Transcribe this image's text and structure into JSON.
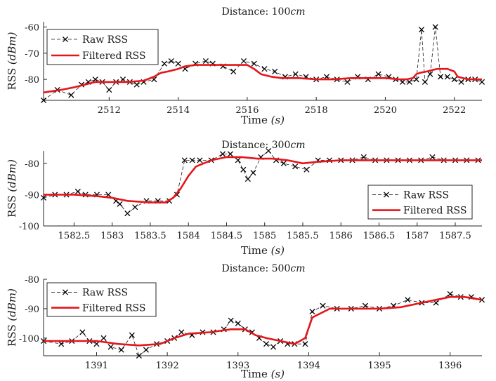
{
  "chart_data": [
    {
      "type": "line",
      "title_prefix": "Distance:",
      "title_value": "100",
      "title_unit": "cm",
      "xlabel": "Time",
      "xunit": "(s)",
      "ylabel": "RSS",
      "yunit": "(dBm)",
      "xlim": [
        2510.1,
        2522.8
      ],
      "ylim": [
        -88,
        -58
      ],
      "xticks": [
        2512,
        2514,
        2516,
        2518,
        2520,
        2522
      ],
      "yticks": [
        -80,
        -70,
        -60
      ],
      "grid": false,
      "legend": {
        "position": "top-left",
        "entries": [
          "Raw RSS",
          "Filtered RSS"
        ]
      },
      "series": [
        {
          "name": "Raw RSS",
          "style": "dashed-x",
          "color": "#000000",
          "x": [
            2510.1,
            2510.5,
            2510.9,
            2511.2,
            2511.4,
            2511.6,
            2511.8,
            2512.0,
            2512.2,
            2512.4,
            2512.6,
            2512.8,
            2513.0,
            2513.3,
            2513.6,
            2513.8,
            2514.0,
            2514.2,
            2514.5,
            2514.8,
            2515.0,
            2515.3,
            2515.6,
            2515.9,
            2516.2,
            2516.5,
            2516.8,
            2517.1,
            2517.4,
            2517.7,
            2518.0,
            2518.3,
            2518.6,
            2518.9,
            2519.2,
            2519.5,
            2519.8,
            2520.1,
            2520.3,
            2520.5,
            2520.7,
            2520.9,
            2521.05,
            2521.15,
            2521.3,
            2521.45,
            2521.6,
            2521.8,
            2522.0,
            2522.2,
            2522.4,
            2522.6,
            2522.8
          ],
          "values": [
            -88,
            -84,
            -86,
            -82,
            -81,
            -80,
            -81,
            -84,
            -81,
            -80,
            -81,
            -82,
            -81,
            -80,
            -74,
            -73,
            -74,
            -76,
            -74,
            -73,
            -74,
            -75,
            -77,
            -73,
            -74,
            -76,
            -77,
            -79,
            -78,
            -79,
            -80,
            -79,
            -80,
            -81,
            -79,
            -80,
            -78,
            -79,
            -80,
            -81,
            -81,
            -80,
            -61,
            -81,
            -78,
            -60,
            -79,
            -79,
            -80,
            -81,
            -80,
            -80,
            -81
          ]
        },
        {
          "name": "Filtered RSS",
          "style": "solid",
          "color": "#e4161b",
          "x": [
            2510.1,
            2510.6,
            2511.0,
            2511.3,
            2511.6,
            2512.0,
            2512.5,
            2513.0,
            2513.3,
            2513.5,
            2513.7,
            2514.0,
            2514.2,
            2514.5,
            2515.0,
            2515.5,
            2516.0,
            2516.2,
            2516.4,
            2516.7,
            2517.0,
            2517.5,
            2518.0,
            2518.5,
            2519.0,
            2519.5,
            2520.0,
            2520.4,
            2520.6,
            2520.8,
            2520.9,
            2521.0,
            2521.2,
            2521.5,
            2521.8,
            2522.0,
            2522.1,
            2522.4,
            2522.8
          ],
          "values": [
            -85,
            -84,
            -83,
            -82,
            -81,
            -81,
            -81,
            -80.5,
            -79,
            -77.5,
            -77,
            -76,
            -75,
            -74.5,
            -74.5,
            -74.5,
            -74.5,
            -76,
            -78,
            -79,
            -79.5,
            -79.5,
            -80,
            -80,
            -79.5,
            -79.5,
            -79.5,
            -80,
            -80,
            -79.5,
            -78,
            -77.5,
            -77,
            -76,
            -76,
            -77,
            -79,
            -80,
            -80
          ]
        }
      ]
    },
    {
      "type": "line",
      "title_prefix": "Distance:",
      "title_value": "300",
      "title_unit": "cm",
      "xlabel": "Time",
      "xunit": "(s)",
      "ylabel": "RSS",
      "yunit": "(dBm)",
      "xlim": [
        1582.1,
        1587.85
      ],
      "ylim": [
        -100,
        -76
      ],
      "xticks": [
        1582.5,
        1583,
        1583.5,
        1584,
        1584.5,
        1585,
        1585.5,
        1586,
        1586.5,
        1587,
        1587.5
      ],
      "yticks": [
        -100,
        -90,
        -80
      ],
      "grid": false,
      "legend": {
        "position": "bottom-right",
        "entries": [
          "Raw RSS",
          "Filtered RSS"
        ]
      },
      "series": [
        {
          "name": "Raw RSS",
          "style": "dashed-x",
          "color": "#000000",
          "x": [
            1582.1,
            1582.25,
            1582.4,
            1582.55,
            1582.65,
            1582.8,
            1582.95,
            1583.05,
            1583.1,
            1583.2,
            1583.3,
            1583.45,
            1583.6,
            1583.75,
            1583.85,
            1583.95,
            1584.05,
            1584.15,
            1584.3,
            1584.45,
            1584.55,
            1584.65,
            1584.72,
            1584.78,
            1584.85,
            1584.95,
            1585.05,
            1585.15,
            1585.25,
            1585.4,
            1585.55,
            1585.7,
            1585.85,
            1586.0,
            1586.15,
            1586.3,
            1586.45,
            1586.6,
            1586.75,
            1586.9,
            1587.05,
            1587.2,
            1587.35,
            1587.5,
            1587.65,
            1587.8
          ],
          "values": [
            -91,
            -90,
            -90,
            -89,
            -90,
            -90,
            -90,
            -92,
            -93,
            -96,
            -94,
            -92,
            -92,
            -92,
            -90,
            -79,
            -79,
            -79,
            -79,
            -77,
            -77,
            -79,
            -82,
            -85,
            -83,
            -78,
            -76,
            -79,
            -80,
            -81,
            -82,
            -79,
            -79,
            -79,
            -79,
            -78,
            -79,
            -79,
            -79,
            -79,
            -79,
            -78,
            -79,
            -79,
            -79,
            -79
          ]
        },
        {
          "name": "Filtered RSS",
          "style": "solid",
          "color": "#e4161b",
          "x": [
            1582.1,
            1582.5,
            1582.8,
            1583.0,
            1583.2,
            1583.5,
            1583.7,
            1583.8,
            1583.9,
            1583.95,
            1584.0,
            1584.1,
            1584.3,
            1584.5,
            1584.7,
            1584.9,
            1585.1,
            1585.3,
            1585.5,
            1585.7,
            1586.0,
            1586.5,
            1587.0,
            1587.5,
            1587.85
          ],
          "values": [
            -90,
            -90,
            -90.5,
            -91,
            -92,
            -92.5,
            -92.5,
            -91,
            -88,
            -86,
            -84,
            -81,
            -79,
            -78,
            -78,
            -78.5,
            -78.5,
            -79,
            -80,
            -79.5,
            -79,
            -79,
            -79,
            -79,
            -79
          ]
        }
      ]
    },
    {
      "type": "line",
      "title_prefix": "Distance:",
      "title_value": "500",
      "title_unit": "cm",
      "xlabel": "Time",
      "xunit": "(s)",
      "ylabel": "RSS",
      "yunit": "(dBm)",
      "xlim": [
        1390.25,
        1396.45
      ],
      "ylim": [
        -106,
        -80
      ],
      "xticks": [
        1391,
        1392,
        1393,
        1394,
        1395,
        1396
      ],
      "yticks": [
        -100,
        -90,
        -80
      ],
      "grid": false,
      "legend": {
        "position": "top-left",
        "entries": [
          "Raw RSS",
          "Filtered RSS"
        ]
      },
      "series": [
        {
          "name": "Raw RSS",
          "style": "dashed-x",
          "color": "#000000",
          "x": [
            1390.25,
            1390.5,
            1390.65,
            1390.8,
            1390.9,
            1391.0,
            1391.1,
            1391.2,
            1391.35,
            1391.5,
            1391.6,
            1391.7,
            1391.85,
            1392.0,
            1392.1,
            1392.2,
            1392.35,
            1392.5,
            1392.65,
            1392.8,
            1392.9,
            1393.0,
            1393.1,
            1393.2,
            1393.3,
            1393.4,
            1393.5,
            1393.6,
            1393.7,
            1393.8,
            1393.95,
            1394.05,
            1394.2,
            1394.4,
            1394.6,
            1394.8,
            1395.0,
            1395.2,
            1395.4,
            1395.6,
            1395.8,
            1396.0,
            1396.15,
            1396.3,
            1396.45
          ],
          "values": [
            -101,
            -102,
            -101,
            -98,
            -101,
            -102,
            -100,
            -103,
            -104,
            -99,
            -106,
            -104,
            -102,
            -101,
            -100,
            -98,
            -99,
            -98,
            -98,
            -97,
            -94,
            -95,
            -97,
            -98,
            -100,
            -102,
            -103,
            -101,
            -102,
            -102,
            -102,
            -91,
            -89,
            -90,
            -90,
            -89,
            -90,
            -89,
            -87,
            -88,
            -88,
            -85,
            -86,
            -86,
            -87
          ]
        },
        {
          "name": "Filtered RSS",
          "style": "solid",
          "color": "#e4161b",
          "x": [
            1390.25,
            1390.6,
            1391.0,
            1391.3,
            1391.6,
            1391.9,
            1392.1,
            1392.3,
            1392.6,
            1392.9,
            1393.1,
            1393.25,
            1393.4,
            1393.6,
            1393.8,
            1393.95,
            1394.05,
            1394.3,
            1394.6,
            1395.0,
            1395.3,
            1395.6,
            1395.8,
            1396.0,
            1396.2,
            1396.45
          ],
          "values": [
            -101,
            -101,
            -101,
            -102,
            -102.5,
            -102,
            -100,
            -98.5,
            -98,
            -97,
            -97,
            -99,
            -100,
            -101,
            -102,
            -100,
            -93,
            -90,
            -90,
            -90,
            -89.5,
            -88,
            -87,
            -86,
            -86,
            -87
          ]
        }
      ]
    }
  ]
}
